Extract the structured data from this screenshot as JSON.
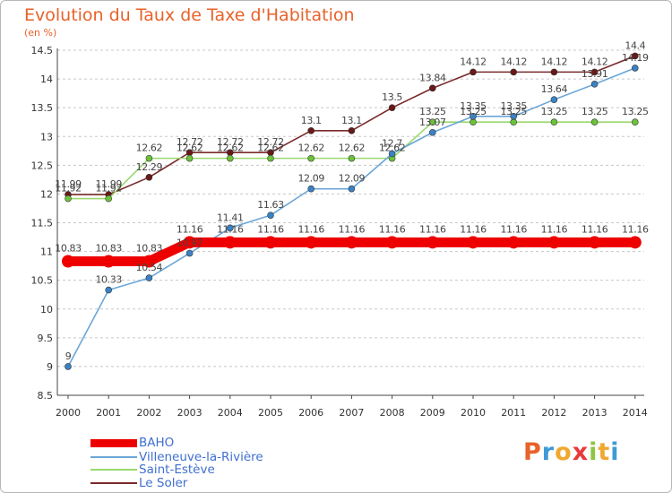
{
  "header": {
    "title": "Evolution du Taux de Taxe d'Habitation",
    "unit": "(en %)"
  },
  "brand": {
    "letters": [
      "P",
      "r",
      "o",
      "x",
      "i",
      "t",
      "i"
    ],
    "colors": [
      "#e8622a",
      "#3f9ad6",
      "#f0a830",
      "#e83a3a",
      "#8cc63f",
      "#f0a830",
      "#3f9ad6"
    ]
  },
  "chart_data": {
    "type": "line",
    "title": "Evolution du Taux de Taxe d'Habitation",
    "ylabel": "(en %)",
    "xlabel": "",
    "x": [
      "2000",
      "2001",
      "2002",
      "2003",
      "2004",
      "2005",
      "2006",
      "2007",
      "2008",
      "2009",
      "2010",
      "2011",
      "2012",
      "2013",
      "2014"
    ],
    "ylim": [
      8.5,
      14.5
    ],
    "yticks": [
      "8.5",
      "9",
      "9.5",
      "10",
      "10.5",
      "11",
      "11.5",
      "12",
      "12.5",
      "13",
      "13.5",
      "14",
      "14.5"
    ],
    "grid": "horizontal dashed",
    "legend_position": "bottom-left",
    "series": [
      {
        "name": "BAHO",
        "color": "#ee0000",
        "thick": true,
        "values": [
          10.83,
          10.83,
          10.83,
          11.16,
          11.16,
          11.16,
          11.16,
          11.16,
          11.16,
          11.16,
          11.16,
          11.16,
          11.16,
          11.16,
          11.16
        ],
        "labels": [
          "10.83",
          "10.83",
          "10.83",
          "11.16",
          "11.16",
          "11.16",
          "11.16",
          "11.16",
          "11.16",
          "11.16",
          "11.16",
          "11.16",
          "11.16",
          "11.16",
          "11.16"
        ]
      },
      {
        "name": "Villeneuve-la-Rivière",
        "color": "#6aa6d8",
        "marker": "#3a82c4",
        "values": [
          9,
          10.33,
          10.54,
          10.97,
          11.41,
          11.63,
          12.09,
          12.09,
          12.7,
          13.07,
          13.35,
          13.35,
          13.64,
          13.91,
          14.19
        ],
        "labels": [
          "9",
          "10.33",
          "10.54",
          "10.97",
          "11.41",
          "11.63",
          "12.09",
          "12.09",
          "12.7",
          "13.07",
          "13.35",
          "13.35",
          "13.64",
          "13.91",
          "14.19"
        ]
      },
      {
        "name": "Saint-Estève",
        "color": "#9ad870",
        "marker": "#6cc23a",
        "values": [
          11.92,
          11.92,
          12.62,
          12.62,
          12.62,
          12.62,
          12.62,
          12.62,
          12.62,
          13.25,
          13.25,
          13.25,
          13.25,
          13.25,
          13.25
        ],
        "labels": [
          "11.92",
          "11.92",
          "12.62",
          "12.62",
          "12.62",
          "12.62",
          "12.62",
          "12.62",
          "12.62",
          "13.25",
          "13.25",
          "13.25",
          "13.25",
          "13.25",
          "13.25"
        ]
      },
      {
        "name": "Le Soler",
        "color": "#7a2a2a",
        "marker": "#6a1818",
        "values": [
          11.99,
          11.99,
          12.29,
          12.72,
          12.72,
          12.72,
          13.1,
          13.1,
          13.5,
          13.84,
          14.12,
          14.12,
          14.12,
          14.12,
          14.4
        ],
        "labels": [
          "11.99",
          "11.99",
          "12.29",
          "12.72",
          "12.72",
          "12.72",
          "13.1",
          "13.1",
          "13.5",
          "13.84",
          "14.12",
          "14.12",
          "14.12",
          "14.12",
          "14.4"
        ]
      }
    ]
  }
}
